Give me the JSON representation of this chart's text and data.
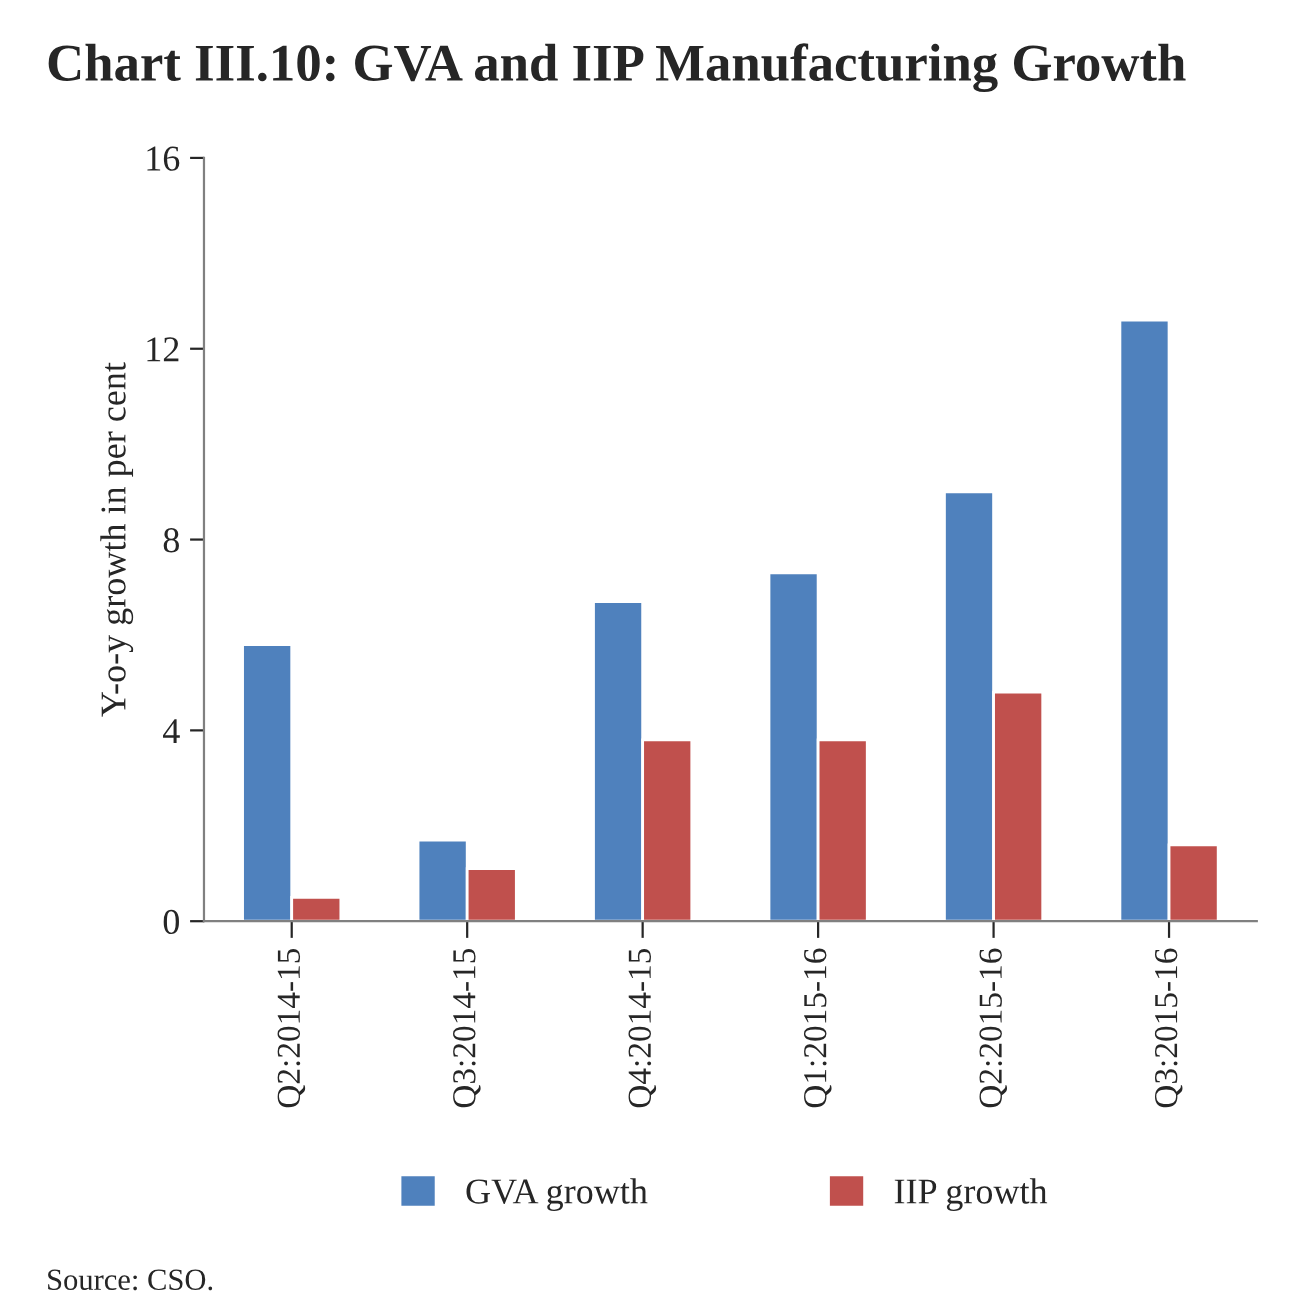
{
  "chart_data": {
    "type": "bar",
    "title": "Chart III.10: GVA and IIP Manufacturing Growth",
    "ylabel": "Y-o-y growth in per cent",
    "categories": [
      "Q2:2014-15",
      "Q3:2014-15",
      "Q4:2014-15",
      "Q1:2015-16",
      "Q2:2015-16",
      "Q3:2015-16"
    ],
    "series": [
      {
        "name": "GVA growth",
        "color": "#4f81bd",
        "values": [
          5.8,
          1.7,
          6.7,
          7.3,
          9.0,
          12.6
        ]
      },
      {
        "name": "IIP growth",
        "color": "#c0504d",
        "values": [
          0.5,
          1.1,
          3.8,
          3.8,
          4.8,
          1.6
        ]
      }
    ],
    "ylim": [
      0,
      16
    ],
    "yticks": [
      0,
      4,
      8,
      12,
      16
    ],
    "grid": false,
    "legend": "bottom",
    "annotations": [
      "Source: CSO."
    ]
  }
}
